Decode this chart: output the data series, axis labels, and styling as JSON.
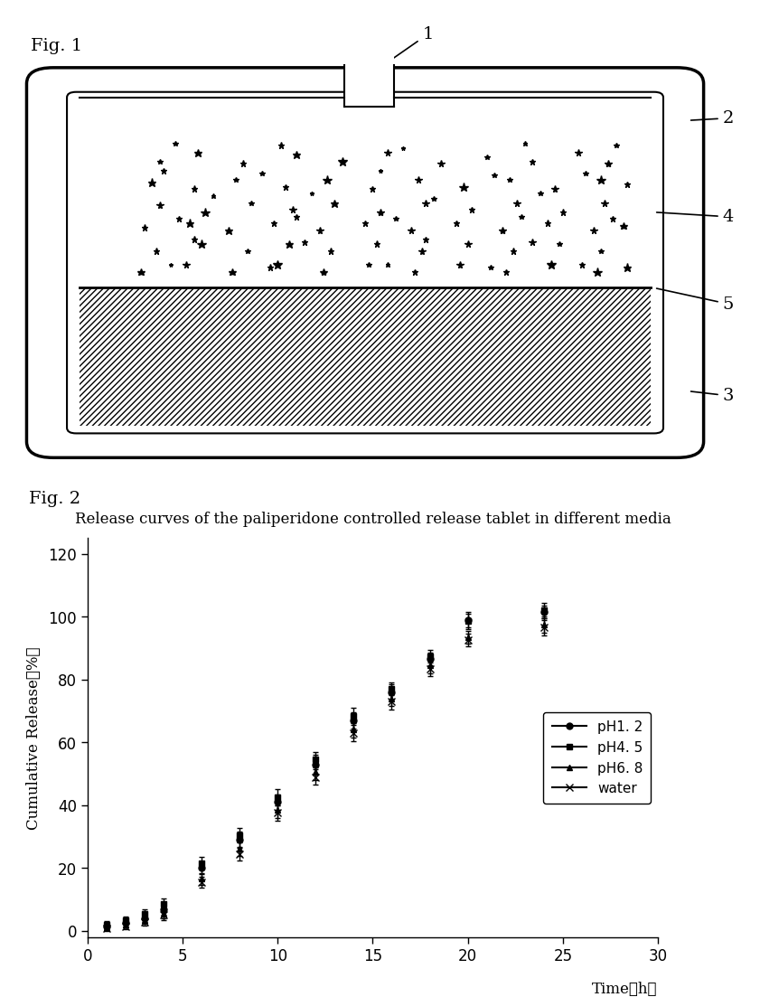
{
  "fig1_label": "Fig. 1",
  "fig2_label": "Fig. 2",
  "fig2_title": "Release curves of the paliperidone controlled release tablet in different media",
  "ylabel": "Cumulative Release（％）",
  "xlabel_label": "Time（h）",
  "yticks": [
    0,
    20,
    40,
    60,
    80,
    100,
    120
  ],
  "xticks": [
    0,
    5,
    10,
    15,
    20,
    25,
    30
  ],
  "xlim": [
    0,
    30
  ],
  "ylim": [
    -2,
    125
  ],
  "series_order": [
    "pH1.2",
    "pH4.5",
    "pH6.8",
    "water"
  ],
  "series": {
    "pH1.2": {
      "label": "pH1. 2",
      "marker": "o",
      "x": [
        1,
        2,
        3,
        4,
        6,
        8,
        10,
        12,
        14,
        16,
        18,
        20,
        24
      ],
      "y": [
        1.5,
        2.5,
        4.0,
        7.0,
        20.0,
        29.0,
        41.0,
        53.0,
        67.0,
        76.0,
        86.5,
        99.0,
        101.5
      ],
      "yerr": [
        1.2,
        1.5,
        1.5,
        2.0,
        2.0,
        2.5,
        2.5,
        3.0,
        2.5,
        2.5,
        2.0,
        2.5,
        2.0
      ],
      "linewidth": 1.5
    },
    "pH4.5": {
      "label": "pH4. 5",
      "marker": "s",
      "x": [
        1,
        2,
        3,
        4,
        6,
        8,
        10,
        12,
        14,
        16,
        18,
        20,
        24
      ],
      "y": [
        2.0,
        3.5,
        5.5,
        8.5,
        21.5,
        30.5,
        42.5,
        54.5,
        68.5,
        77.0,
        87.5,
        98.5,
        102.0
      ],
      "yerr": [
        1.0,
        1.2,
        1.5,
        1.8,
        2.0,
        2.2,
        2.5,
        2.5,
        2.5,
        2.0,
        2.0,
        2.5,
        2.5
      ],
      "linewidth": 1.5
    },
    "pH6.8": {
      "label": "pH6. 8",
      "marker": "^",
      "x": [
        1,
        2,
        3,
        4,
        6,
        8,
        10,
        12,
        14,
        16,
        18,
        20,
        24
      ],
      "y": [
        1.0,
        2.0,
        3.5,
        5.5,
        16.5,
        26.0,
        38.5,
        50.5,
        64.0,
        74.0,
        84.5,
        93.5,
        97.5
      ],
      "yerr": [
        0.8,
        1.0,
        1.2,
        1.5,
        1.8,
        2.2,
        2.5,
        2.5,
        2.5,
        2.5,
        2.5,
        2.0,
        2.5
      ],
      "linewidth": 1.5
    },
    "water": {
      "label": "water",
      "marker": "x",
      "x": [
        1,
        2,
        3,
        4,
        6,
        8,
        10,
        12,
        14,
        16,
        18,
        20,
        24
      ],
      "y": [
        0.8,
        1.5,
        2.8,
        5.0,
        15.5,
        24.5,
        37.5,
        49.0,
        63.0,
        73.0,
        83.5,
        92.5,
        96.5
      ],
      "yerr": [
        0.8,
        1.0,
        1.2,
        1.5,
        1.8,
        2.2,
        2.5,
        2.5,
        2.5,
        2.5,
        2.5,
        2.0,
        2.5
      ],
      "linewidth": 1.5
    }
  },
  "background_color": "#ffffff",
  "dot_positions": [
    [
      2.1,
      6.9
    ],
    [
      2.6,
      7.1
    ],
    [
      3.2,
      6.85
    ],
    [
      3.9,
      7.05
    ],
    [
      4.5,
      6.9
    ],
    [
      5.1,
      7.1
    ],
    [
      5.8,
      6.85
    ],
    [
      6.4,
      7.0
    ],
    [
      7.0,
      6.9
    ],
    [
      7.6,
      7.1
    ],
    [
      8.0,
      6.85
    ],
    [
      2.0,
      6.45
    ],
    [
      2.55,
      6.3
    ],
    [
      3.1,
      6.5
    ],
    [
      3.75,
      6.35
    ],
    [
      4.3,
      6.5
    ],
    [
      4.9,
      6.3
    ],
    [
      5.5,
      6.5
    ],
    [
      6.1,
      6.35
    ],
    [
      6.7,
      6.5
    ],
    [
      7.3,
      6.3
    ],
    [
      7.9,
      6.5
    ],
    [
      8.25,
      6.4
    ],
    [
      2.1,
      5.95
    ],
    [
      2.7,
      5.8
    ],
    [
      3.3,
      6.0
    ],
    [
      3.85,
      5.85
    ],
    [
      4.4,
      6.0
    ],
    [
      5.0,
      5.8
    ],
    [
      5.6,
      6.0
    ],
    [
      6.2,
      5.85
    ],
    [
      6.8,
      6.0
    ],
    [
      7.4,
      5.8
    ],
    [
      7.95,
      6.0
    ],
    [
      1.9,
      5.45
    ],
    [
      2.5,
      5.55
    ],
    [
      3.0,
      5.4
    ],
    [
      3.6,
      5.55
    ],
    [
      4.2,
      5.4
    ],
    [
      4.8,
      5.55
    ],
    [
      5.4,
      5.4
    ],
    [
      6.0,
      5.55
    ],
    [
      6.6,
      5.4
    ],
    [
      7.2,
      5.55
    ],
    [
      7.8,
      5.4
    ],
    [
      8.2,
      5.5
    ],
    [
      2.05,
      4.95
    ],
    [
      2.65,
      5.1
    ],
    [
      3.25,
      4.95
    ],
    [
      3.8,
      5.1
    ],
    [
      4.35,
      4.95
    ],
    [
      4.95,
      5.1
    ],
    [
      5.55,
      4.95
    ],
    [
      6.15,
      5.1
    ],
    [
      6.75,
      4.95
    ],
    [
      7.35,
      5.1
    ],
    [
      7.9,
      4.95
    ],
    [
      1.85,
      4.5
    ],
    [
      2.45,
      4.65
    ],
    [
      3.05,
      4.5
    ],
    [
      3.65,
      4.65
    ],
    [
      4.25,
      4.5
    ],
    [
      4.85,
      4.65
    ],
    [
      5.45,
      4.5
    ],
    [
      6.05,
      4.65
    ],
    [
      6.65,
      4.5
    ],
    [
      7.25,
      4.65
    ],
    [
      7.85,
      4.5
    ],
    [
      8.25,
      4.6
    ]
  ]
}
